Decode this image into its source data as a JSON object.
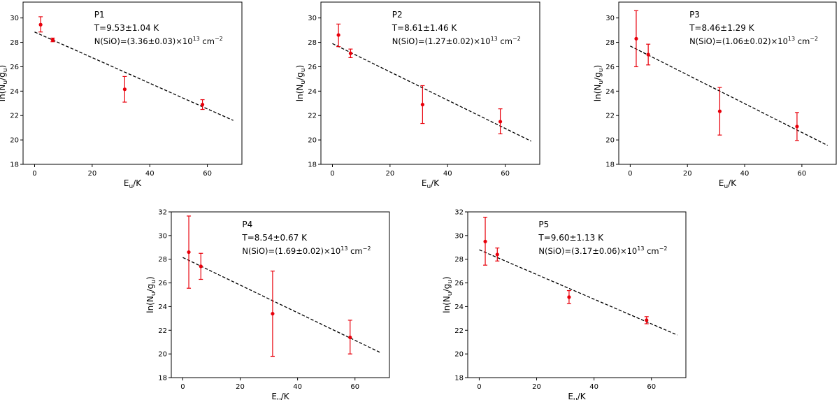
{
  "chart_data": [
    {
      "type": "scatter",
      "label": "P1",
      "temperature": "T=9.53±1.04 K",
      "column_density": {
        "prefix": "N(SiO)=(3.36±0.03)×10",
        "exponent": "13",
        "unit": " cm",
        "unit_exponent": "−2"
      },
      "xlabel": {
        "base": "E",
        "sub": "u",
        "rest": "/K"
      },
      "ylabel": {
        "pre": "ln(N",
        "sub1": "u",
        "mid": "/g",
        "sub2": "u",
        "post": ")"
      },
      "xlim": [
        -4,
        72
      ],
      "ylim": [
        18,
        31.3
      ],
      "xticks": [
        0,
        20,
        40,
        60
      ],
      "yticks": [
        18,
        20,
        22,
        24,
        26,
        28,
        30
      ],
      "points": [
        {
          "x": 2.1,
          "y": 29.45,
          "err_low": 0.6,
          "err_high": 0.65
        },
        {
          "x": 6.3,
          "y": 28.2,
          "err_low": 0.15,
          "err_high": 0.15
        },
        {
          "x": 31.3,
          "y": 24.15,
          "err_low": 1.05,
          "err_high": 1.05
        },
        {
          "x": 58.3,
          "y": 22.9,
          "err_low": 0.4,
          "err_high": 0.4
        }
      ],
      "fit": {
        "x0": 0,
        "y0": 28.85,
        "x1": 69,
        "y1": 21.6
      }
    },
    {
      "type": "scatter",
      "label": "P2",
      "temperature": "T=8.61±1.46 K",
      "column_density": {
        "prefix": "N(SiO)=(1.27±0.02)×10",
        "exponent": "13",
        "unit": " cm",
        "unit_exponent": "−2"
      },
      "xlabel": {
        "base": "E",
        "sub": "u",
        "rest": "/K"
      },
      "ylabel": {
        "pre": "ln(N",
        "sub1": "u",
        "mid": "/g",
        "sub2": "u",
        "post": ")"
      },
      "xlim": [
        -4,
        72
      ],
      "ylim": [
        18,
        31.3
      ],
      "xticks": [
        0,
        20,
        40,
        60
      ],
      "yticks": [
        18,
        20,
        22,
        24,
        26,
        28,
        30
      ],
      "points": [
        {
          "x": 2.1,
          "y": 28.6,
          "err_low": 0.95,
          "err_high": 0.9
        },
        {
          "x": 6.3,
          "y": 27.1,
          "err_low": 0.35,
          "err_high": 0.35
        },
        {
          "x": 31.3,
          "y": 22.9,
          "err_low": 1.55,
          "err_high": 1.55
        },
        {
          "x": 58.3,
          "y": 21.5,
          "err_low": 1.0,
          "err_high": 1.05
        }
      ],
      "fit": {
        "x0": 0,
        "y0": 27.9,
        "x1": 69,
        "y1": 19.9
      }
    },
    {
      "type": "scatter",
      "label": "P3",
      "temperature": "T=8.46±1.29 K",
      "column_density": {
        "prefix": "N(SiO)=(1.06±0.02)×10",
        "exponent": "13",
        "unit": " cm",
        "unit_exponent": "−2"
      },
      "xlabel": {
        "base": "E",
        "sub": "u",
        "rest": "/K"
      },
      "ylabel": {
        "pre": "ln(N",
        "sub1": "u",
        "mid": "/g",
        "sub2": "u",
        "post": ")"
      },
      "xlim": [
        -4,
        72
      ],
      "ylim": [
        18,
        31.3
      ],
      "xticks": [
        0,
        20,
        40,
        60
      ],
      "yticks": [
        18,
        20,
        22,
        24,
        26,
        28,
        30
      ],
      "points": [
        {
          "x": 2.1,
          "y": 28.3,
          "err_low": 2.3,
          "err_high": 2.3
        },
        {
          "x": 6.3,
          "y": 27.0,
          "err_low": 0.85,
          "err_high": 0.85
        },
        {
          "x": 31.3,
          "y": 22.35,
          "err_low": 1.95,
          "err_high": 1.95
        },
        {
          "x": 58.3,
          "y": 21.1,
          "err_low": 1.15,
          "err_high": 1.15
        }
      ],
      "fit": {
        "x0": 0,
        "y0": 27.7,
        "x1": 69,
        "y1": 19.55
      }
    },
    {
      "type": "scatter",
      "label": "P4",
      "temperature": "T=8.54±0.67 K",
      "column_density": {
        "prefix": "N(SiO)=(1.69±0.02)×10",
        "exponent": "13",
        "unit": " cm",
        "unit_exponent": "−2"
      },
      "xlabel": {
        "base": "E",
        "sub": "u",
        "rest": "/K"
      },
      "ylabel": {
        "pre": "ln(N",
        "sub1": "u",
        "mid": "/g",
        "sub2": "u",
        "post": ")"
      },
      "xlim": [
        -4,
        72
      ],
      "ylim": [
        18,
        32
      ],
      "xticks": [
        0,
        20,
        40,
        60
      ],
      "yticks": [
        18,
        20,
        22,
        24,
        26,
        28,
        30,
        32
      ],
      "points": [
        {
          "x": 2.1,
          "y": 28.6,
          "err_low": 3.05,
          "err_high": 3.05
        },
        {
          "x": 6.3,
          "y": 27.4,
          "err_low": 1.1,
          "err_high": 1.1
        },
        {
          "x": 31.3,
          "y": 23.4,
          "err_low": 3.6,
          "err_high": 3.6
        },
        {
          "x": 58.3,
          "y": 21.4,
          "err_low": 1.4,
          "err_high": 1.45
        }
      ],
      "fit": {
        "x0": 0,
        "y0": 28.15,
        "x1": 69,
        "y1": 20.1
      }
    },
    {
      "type": "scatter",
      "label": "P5",
      "temperature": "T=9.60±1.13 K",
      "column_density": {
        "prefix": "N(SiO)=(3.17±0.06)×10",
        "exponent": "13",
        "unit": " cm",
        "unit_exponent": "−2"
      },
      "xlabel": {
        "base": "E",
        "sub": "u",
        "rest": "/K"
      },
      "ylabel": {
        "pre": "ln(N",
        "sub1": "u",
        "mid": "/g",
        "sub2": "u",
        "post": ")"
      },
      "xlim": [
        -4,
        72
      ],
      "ylim": [
        18,
        32
      ],
      "xticks": [
        0,
        20,
        40,
        60
      ],
      "yticks": [
        18,
        20,
        22,
        24,
        26,
        28,
        30,
        32
      ],
      "points": [
        {
          "x": 2.1,
          "y": 29.5,
          "err_low": 2.0,
          "err_high": 2.05
        },
        {
          "x": 6.3,
          "y": 28.4,
          "err_low": 0.55,
          "err_high": 0.55
        },
        {
          "x": 31.3,
          "y": 24.8,
          "err_low": 0.55,
          "err_high": 0.55
        },
        {
          "x": 58.3,
          "y": 22.85,
          "err_low": 0.3,
          "err_high": 0.3
        }
      ],
      "fit": {
        "x0": 0,
        "y0": 28.8,
        "x1": 69,
        "y1": 21.6
      }
    }
  ],
  "colors": {
    "points": "#e8000b",
    "fit": "#000000",
    "axes": "#000000"
  }
}
